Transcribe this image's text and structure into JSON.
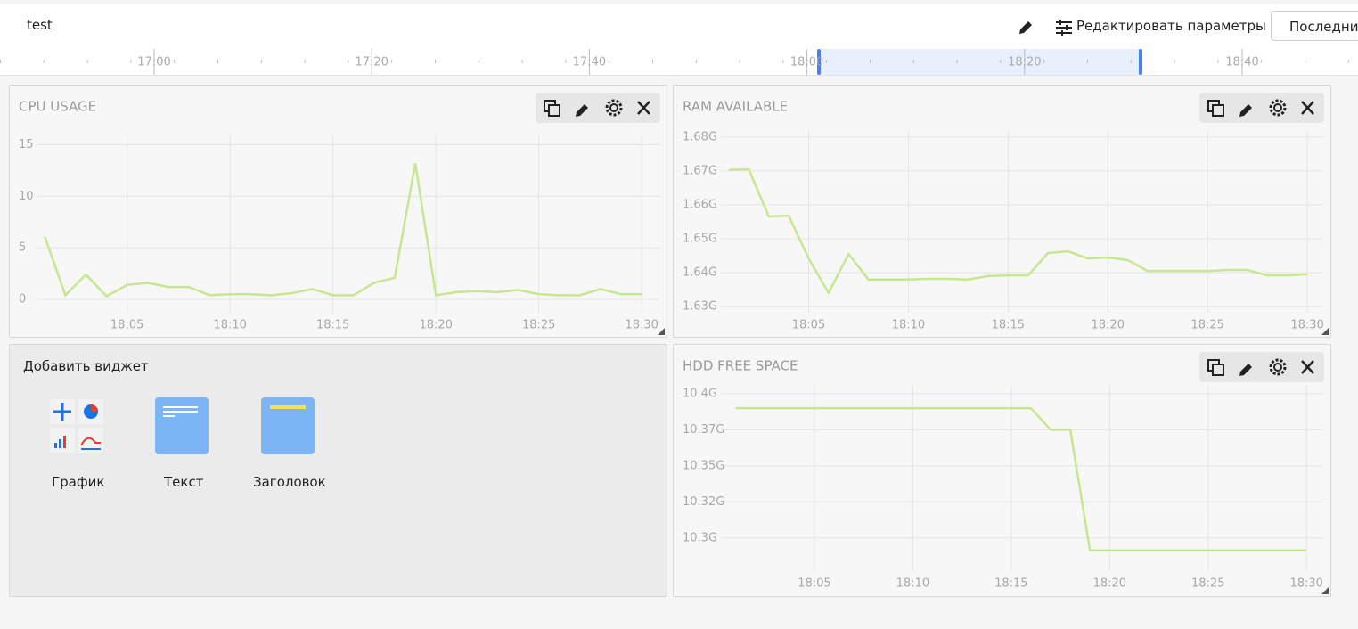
{
  "header": {
    "title": "test",
    "edit_params": "Редактировать параметры",
    "range_button": "Последние"
  },
  "timeline": {
    "labels": [
      "17:00",
      "17:20",
      "17:40",
      "18:00",
      "18:20",
      "18:40"
    ]
  },
  "chart_data": [
    {
      "type": "line",
      "title": "CPU USAGE",
      "color": "#c8e690",
      "grid": true,
      "x": [
        1,
        2,
        3,
        4,
        5,
        6,
        7,
        8,
        9,
        10,
        11,
        12,
        13,
        14,
        15,
        16,
        17,
        18,
        19,
        20,
        21,
        22,
        23,
        24,
        25,
        26,
        27,
        28,
        29,
        30
      ],
      "values": [
        6.1,
        0.4,
        2.4,
        0.3,
        1.4,
        1.6,
        1.2,
        1.2,
        0.4,
        0.5,
        0.5,
        0.4,
        0.6,
        1.0,
        0.4,
        0.4,
        1.6,
        2.1,
        13.2,
        0.4,
        0.7,
        0.8,
        0.7,
        0.9,
        0.5,
        0.4,
        0.4,
        1.0,
        0.5,
        0.5
      ],
      "xlim": [
        0.6,
        30.9
      ],
      "xticks": [
        {
          "value": 5,
          "label": "18:05"
        },
        {
          "value": 10,
          "label": "18:10"
        },
        {
          "value": 15,
          "label": "18:15"
        },
        {
          "value": 20,
          "label": "18:20"
        },
        {
          "value": 25,
          "label": "18:25"
        },
        {
          "value": 30,
          "label": "18:30"
        }
      ],
      "ylim": [
        -1.3,
        16
      ],
      "yticks": [
        0,
        5,
        10,
        15
      ]
    },
    {
      "type": "line",
      "title": "RAM AVAILABLE",
      "color": "#c8e690",
      "grid": true,
      "x": [
        1,
        2,
        3,
        4,
        5,
        6,
        7,
        8,
        9,
        10,
        11,
        12,
        13,
        14,
        15,
        16,
        17,
        18,
        19,
        20,
        21,
        22,
        23,
        24,
        25,
        26,
        27,
        28,
        29,
        30
      ],
      "values": [
        1.6703,
        1.6705,
        1.6566,
        1.6568,
        1.6442,
        1.634,
        1.6455,
        1.638,
        1.638,
        1.638,
        1.6382,
        1.6382,
        1.638,
        1.639,
        1.6392,
        1.6392,
        1.6458,
        1.6463,
        1.6442,
        1.6445,
        1.6437,
        1.6405,
        1.6405,
        1.6405,
        1.6405,
        1.6408,
        1.6408,
        1.6392,
        1.6392,
        1.6395
      ],
      "xlim": [
        0.6,
        30.8
      ],
      "xticks": [
        {
          "value": 5,
          "label": "18:05"
        },
        {
          "value": 10,
          "label": "18:10"
        },
        {
          "value": 15,
          "label": "18:15"
        },
        {
          "value": 20,
          "label": "18:20"
        },
        {
          "value": 25,
          "label": "18:25"
        },
        {
          "value": 30,
          "label": "18:30"
        }
      ],
      "ylim": [
        1.6282,
        1.6818
      ],
      "yticks": [
        {
          "value": 1.63,
          "label": "1.63G"
        },
        {
          "value": 1.64,
          "label": "1.64G"
        },
        {
          "value": 1.65,
          "label": "1.65G"
        },
        {
          "value": 1.66,
          "label": "1.66G"
        },
        {
          "value": 1.67,
          "label": "1.67G"
        },
        {
          "value": 1.68,
          "label": "1.68G"
        }
      ]
    },
    {
      "type": "line",
      "title": "HDD FREE SPACE",
      "color": "#c8e690",
      "grid": true,
      "x": [
        1,
        2,
        3,
        4,
        5,
        6,
        7,
        8,
        9,
        10,
        11,
        12,
        13,
        14,
        15,
        16,
        17,
        18,
        19,
        20,
        21,
        22,
        23,
        24,
        25,
        26,
        27,
        28,
        29,
        30
      ],
      "values": [
        10.39,
        10.39,
        10.39,
        10.39,
        10.39,
        10.39,
        10.39,
        10.39,
        10.39,
        10.39,
        10.39,
        10.39,
        10.39,
        10.39,
        10.39,
        10.39,
        10.375,
        10.375,
        10.2914,
        10.2914,
        10.2914,
        10.2914,
        10.2914,
        10.2914,
        10.2914,
        10.2914,
        10.2914,
        10.2914,
        10.2914,
        10.2914
      ],
      "xlim": [
        0.25,
        30.85
      ],
      "xticks": [
        {
          "value": 5,
          "label": "18:05"
        },
        {
          "value": 10,
          "label": "18:10"
        },
        {
          "value": 15,
          "label": "18:15"
        },
        {
          "value": 20,
          "label": "18:20"
        },
        {
          "value": 25,
          "label": "18:25"
        },
        {
          "value": 30,
          "label": "18:30"
        }
      ],
      "ylim": [
        10.277,
        10.4055
      ],
      "yticks": [
        {
          "value": 10.3,
          "label": "10.3G"
        },
        {
          "value": 10.325,
          "label": "10.32G"
        },
        {
          "value": 10.35,
          "label": "10.35G"
        },
        {
          "value": 10.375,
          "label": "10.37G"
        },
        {
          "value": 10.4,
          "label": "10.4G"
        }
      ]
    }
  ],
  "add_widget": {
    "title": "Добавить виджет",
    "items": [
      "График",
      "Текст",
      "Заголовок"
    ]
  }
}
